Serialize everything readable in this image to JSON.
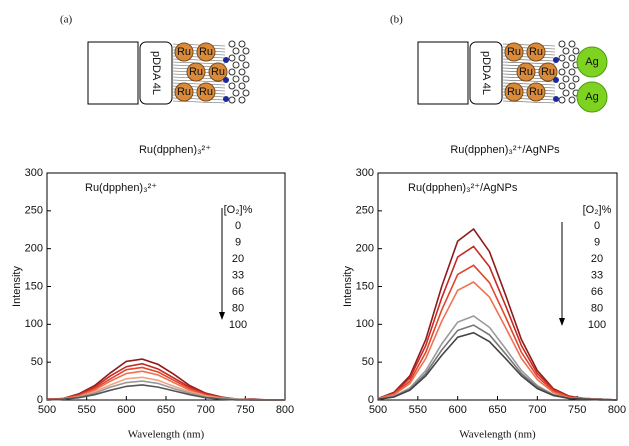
{
  "chart_data": [
    {
      "type": "line",
      "panel_label": "(a)",
      "schematic": {
        "layer_label": "pDDA 4L",
        "particle_label": "Ru"
      },
      "caption": "Ru(dpphen)₃²⁺",
      "title": "Ru(dpphen)₃²⁺",
      "legend_title": "[O₂]%",
      "x_label": "Wavelength (nm)",
      "y_label": "Intensity",
      "x": [
        500,
        520,
        540,
        560,
        580,
        600,
        620,
        640,
        660,
        680,
        700,
        720,
        740,
        760,
        780,
        800
      ],
      "series": [
        {
          "name": "0",
          "color": "#8e1b1b",
          "values": [
            1,
            2,
            8,
            19,
            36,
            51,
            54,
            47,
            34,
            19,
            9,
            4,
            1,
            1,
            0,
            0
          ]
        },
        {
          "name": "9",
          "color": "#c62a22",
          "values": [
            0,
            2,
            7,
            17,
            32,
            44,
            48,
            41,
            29,
            17,
            8,
            3,
            1,
            0,
            0,
            0
          ]
        },
        {
          "name": "20",
          "color": "#e0452e",
          "values": [
            0,
            2,
            6,
            15,
            28,
            40,
            43,
            37,
            26,
            15,
            7,
            3,
            1,
            0,
            0,
            0
          ]
        },
        {
          "name": "33",
          "color": "#ef7150",
          "values": [
            0,
            2,
            5,
            13,
            25,
            35,
            38,
            33,
            23,
            13,
            6,
            3,
            1,
            0,
            0,
            0
          ]
        },
        {
          "name": "66",
          "color": "#f3a27f",
          "values": [
            0,
            1,
            4,
            11,
            20,
            28,
            30,
            26,
            18,
            11,
            5,
            2,
            1,
            0,
            0,
            0
          ]
        },
        {
          "name": "80",
          "color": "#9a9a9a",
          "values": [
            0,
            1,
            4,
            9,
            17,
            23,
            25,
            22,
            15,
            9,
            4,
            2,
            1,
            0,
            0,
            0
          ]
        },
        {
          "name": "100",
          "color": "#555555",
          "values": [
            0,
            1,
            3,
            7,
            13,
            18,
            20,
            17,
            12,
            7,
            3,
            1,
            0,
            0,
            0,
            0
          ]
        }
      ],
      "xlim": [
        500,
        800
      ],
      "xticks": [
        500,
        550,
        600,
        650,
        700,
        750,
        800
      ],
      "ylim": [
        0,
        300
      ],
      "yticks": [
        0,
        50,
        100,
        150,
        200,
        250,
        300
      ]
    },
    {
      "type": "line",
      "panel_label": "(b)",
      "schematic": {
        "layer_label": "pDDA 4L",
        "particle_label": "Ru",
        "np_label": "Ag"
      },
      "caption": "Ru(dpphen)₃²⁺/AgNPs",
      "title": "Ru(dpphen)₃²⁺/AgNPs",
      "legend_title": "[O₂]%",
      "x_label": "Wavelength (nm)",
      "y_label": "Intensity",
      "x": [
        500,
        520,
        540,
        560,
        580,
        600,
        620,
        640,
        660,
        680,
        700,
        720,
        740,
        760,
        780,
        800
      ],
      "series": [
        {
          "name": "0",
          "color": "#8e1b1b",
          "values": [
            2,
            10,
            32,
            80,
            150,
            210,
            226,
            196,
            139,
            80,
            39,
            15,
            5,
            2,
            1,
            0
          ]
        },
        {
          "name": "9",
          "color": "#c62a22",
          "values": [
            2,
            9,
            29,
            72,
            135,
            189,
            203,
            176,
            125,
            72,
            35,
            14,
            4,
            2,
            1,
            0
          ]
        },
        {
          "name": "20",
          "color": "#e0452e",
          "values": [
            2,
            8,
            25,
            63,
            119,
            166,
            178,
            155,
            110,
            63,
            31,
            12,
            4,
            2,
            1,
            0
          ]
        },
        {
          "name": "33",
          "color": "#ef7150",
          "values": [
            2,
            7,
            22,
            55,
            104,
            145,
            156,
            136,
            96,
            55,
            27,
            10,
            3,
            2,
            1,
            0
          ]
        },
        {
          "name": "66",
          "color": "#9a9a9a",
          "values": [
            1,
            5,
            16,
            39,
            74,
            103,
            111,
            96,
            68,
            39,
            19,
            7,
            2,
            1,
            1,
            0
          ]
        },
        {
          "name": "80",
          "color": "#777777",
          "values": [
            1,
            4,
            14,
            35,
            66,
            92,
            99,
            86,
            61,
            35,
            17,
            7,
            2,
            1,
            1,
            0
          ]
        },
        {
          "name": "100",
          "color": "#444444",
          "values": [
            1,
            4,
            13,
            32,
            59,
            83,
            89,
            77,
            55,
            32,
            15,
            6,
            2,
            1,
            0,
            0
          ]
        }
      ],
      "xlim": [
        500,
        800
      ],
      "xticks": [
        500,
        550,
        600,
        650,
        700,
        750,
        800
      ],
      "ylim": [
        0,
        300
      ],
      "yticks": [
        0,
        50,
        100,
        150,
        200,
        250,
        300
      ]
    }
  ]
}
